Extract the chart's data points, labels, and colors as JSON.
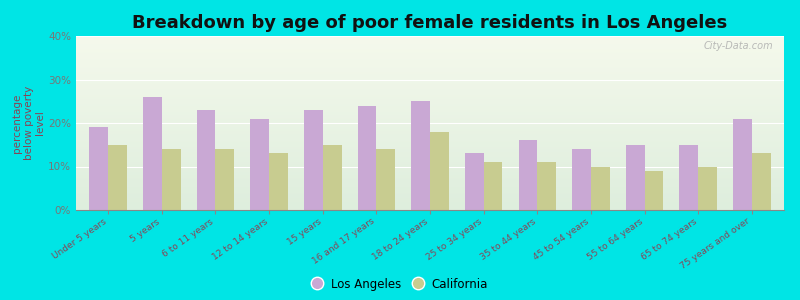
{
  "title": "Breakdown by age of poor female residents in Los Angeles",
  "ylabel": "percentage\nbelow poverty\nlevel",
  "categories": [
    "Under 5 years",
    "5 years",
    "6 to 11 years",
    "12 to 14 years",
    "15 years",
    "16 and 17 years",
    "18 to 24 years",
    "25 to 34 years",
    "35 to 44 years",
    "45 to 54 years",
    "55 to 64 years",
    "65 to 74 years",
    "75 years and over"
  ],
  "la_values": [
    19,
    26,
    23,
    21,
    23,
    24,
    25,
    13,
    16,
    14,
    15,
    15,
    21
  ],
  "ca_values": [
    15,
    14,
    14,
    13,
    15,
    14,
    18,
    11,
    11,
    10,
    9,
    10,
    13
  ],
  "la_color": "#c9a8d4",
  "ca_color": "#c8cc90",
  "ylim": [
    0,
    40
  ],
  "yticks": [
    0,
    10,
    20,
    30,
    40
  ],
  "ytick_labels": [
    "0%",
    "10%",
    "20%",
    "30%",
    "40%"
  ],
  "plot_bg_color": "#eef4e8",
  "outer_background": "#00e5e5",
  "title_fontsize": 13,
  "ylabel_fontsize": 7.5,
  "ytick_fontsize": 7.5,
  "xtick_fontsize": 6.5,
  "legend_labels": [
    "Los Angeles",
    "California"
  ],
  "legend_fontsize": 8.5,
  "watermark": "City-Data.com",
  "watermark_fontsize": 7,
  "bar_width": 0.35,
  "ylabel_color": "#884455",
  "xtick_color": "#884455",
  "ytick_color": "#777777",
  "title_color": "#111111"
}
